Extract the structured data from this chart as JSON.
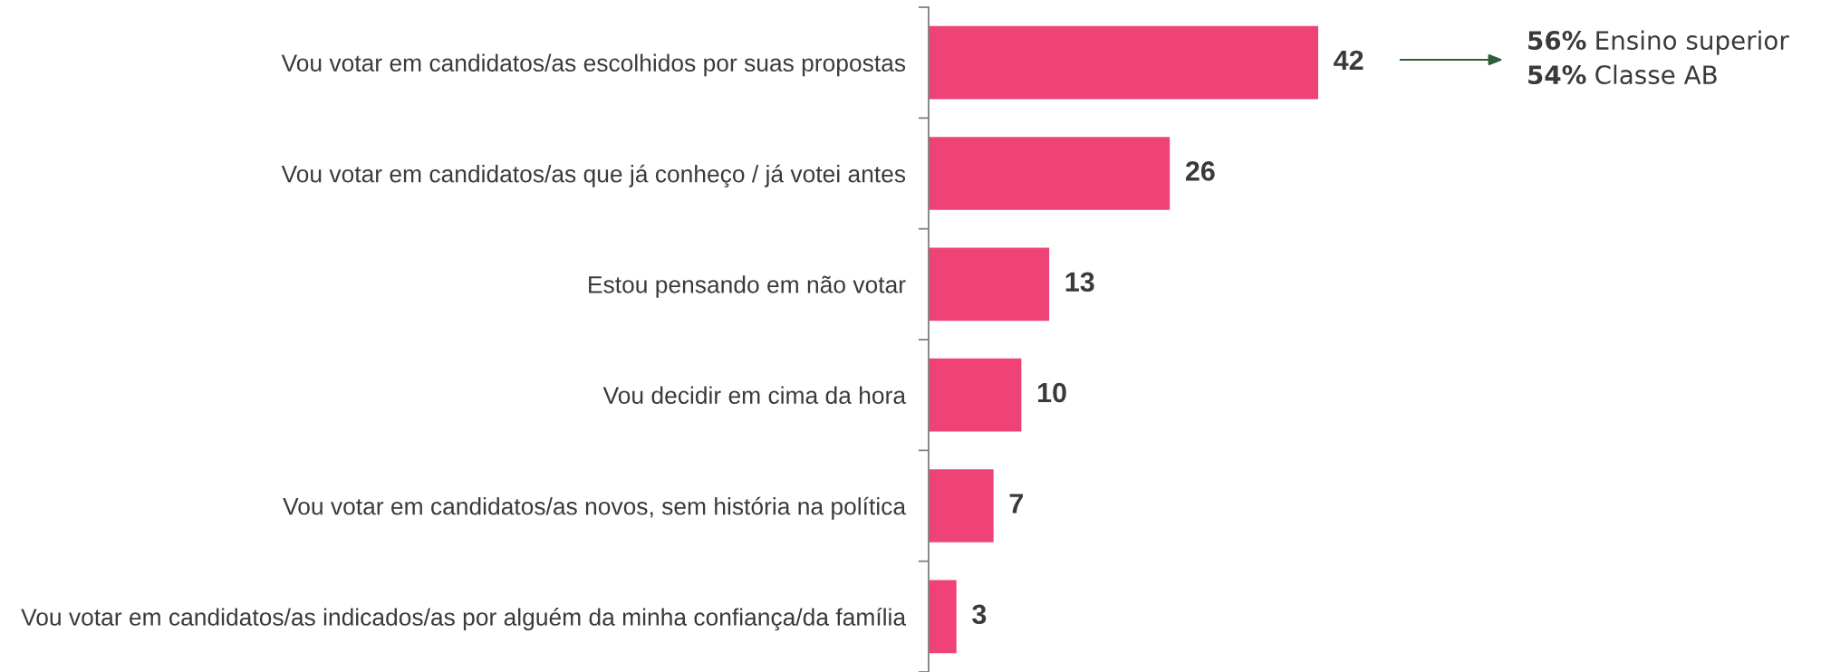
{
  "chart_data": {
    "type": "bar",
    "orientation": "horizontal",
    "categories": [
      "Vou votar em candidatos/as escolhidos por suas propostas",
      "Vou votar em candidatos/as que já conheço / já votei antes",
      "Estou pensando em não votar",
      "Vou decidir em cima da hora",
      "Vou votar em candidatos/as novos, sem história na política",
      "Vou votar em candidatos/as indicados/as por alguém da minha confiança/da família"
    ],
    "values": [
      42,
      26,
      13,
      10,
      7,
      3
    ],
    "color": "#ef4277",
    "data_labels": true,
    "tick_labels": "y",
    "grid": false,
    "annotations": [
      "56% Ensino superior\n54% Classe AB"
    ]
  }
}
